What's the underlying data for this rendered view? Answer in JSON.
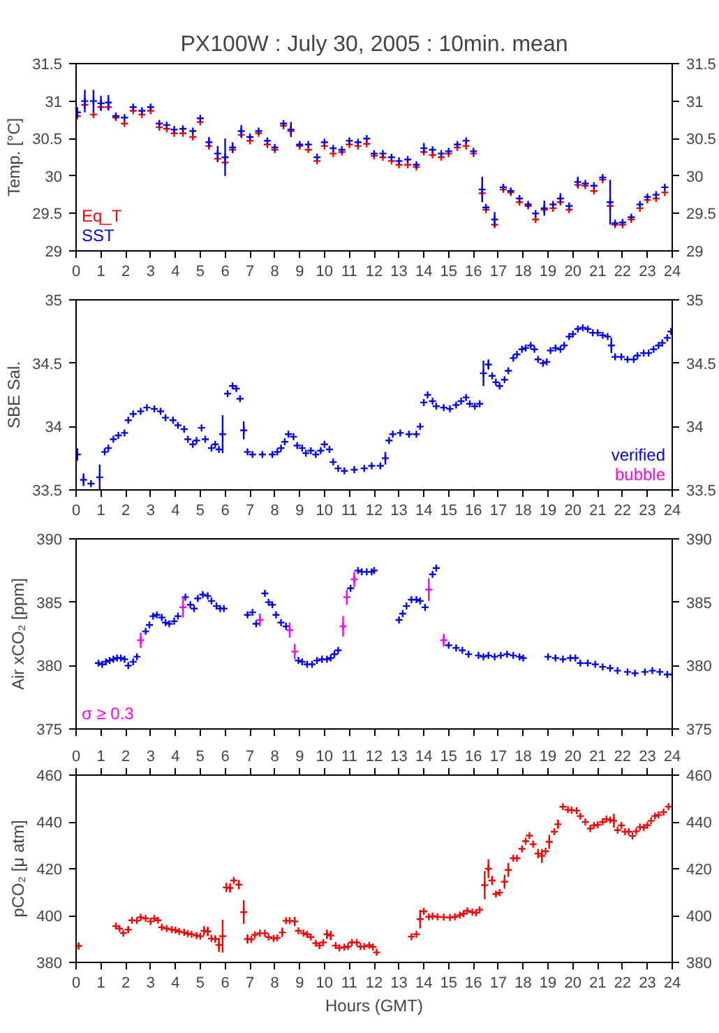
{
  "chart_data": [
    {
      "type": "scatter",
      "title": "PX100W : July 30, 2005 : 10min. mean",
      "ylabel": "Temp. [°C]",
      "marker": "cross",
      "legend": "bottom left",
      "grid": false,
      "xlim": [
        0,
        24
      ],
      "xticks": [
        0,
        1,
        2,
        3,
        4,
        5,
        6,
        7,
        8,
        9,
        10,
        11,
        12,
        13,
        14,
        15,
        16,
        17,
        18,
        19,
        20,
        21,
        22,
        23,
        24
      ],
      "ylim": [
        29,
        31.5
      ],
      "yticks": [
        29,
        29.5,
        30,
        30.5,
        31,
        31.5
      ],
      "y2lim": [
        29,
        31.5
      ],
      "y2ticks": [
        29,
        29.5,
        30,
        30.5,
        31,
        31.5
      ],
      "x": [
        0.05,
        0.35,
        0.7,
        1.0,
        1.3,
        1.6,
        1.95,
        2.3,
        2.65,
        3.0,
        3.35,
        3.65,
        3.95,
        4.3,
        4.7,
        5.0,
        5.35,
        5.7,
        6.0,
        6.3,
        6.65,
        7.0,
        7.35,
        7.7,
        8.0,
        8.35,
        8.65,
        9.0,
        9.35,
        9.7,
        10.0,
        10.35,
        10.7,
        11.0,
        11.35,
        11.7,
        12.0,
        12.35,
        12.7,
        13.0,
        13.35,
        13.7,
        14.0,
        14.35,
        14.7,
        15.0,
        15.35,
        15.7,
        16.0,
        16.35,
        16.5,
        16.85,
        17.2,
        17.5,
        17.85,
        18.2,
        18.5,
        18.85,
        19.2,
        19.5,
        19.85,
        20.2,
        20.5,
        20.85,
        21.2,
        21.5,
        21.7,
        22.0,
        22.35,
        22.7,
        23.0,
        23.35,
        23.7
      ],
      "series": [
        {
          "name": "Eq_T",
          "color": "#ff0000",
          "values": [
            30.8,
            30.95,
            30.82,
            30.92,
            30.92,
            30.78,
            30.7,
            30.87,
            30.82,
            30.87,
            30.65,
            30.63,
            30.57,
            30.57,
            30.52,
            30.72,
            30.4,
            30.23,
            30.18,
            30.35,
            30.55,
            30.47,
            30.57,
            30.42,
            30.35,
            30.67,
            30.6,
            30.4,
            30.35,
            30.2,
            30.4,
            30.3,
            30.32,
            30.42,
            30.4,
            30.43,
            30.27,
            30.25,
            30.2,
            30.15,
            30.15,
            30.12,
            30.32,
            30.28,
            30.25,
            30.3,
            30.38,
            30.4,
            30.3,
            29.77,
            29.55,
            29.35,
            29.82,
            29.78,
            29.65,
            29.6,
            29.42,
            29.55,
            29.57,
            29.65,
            29.55,
            29.88,
            29.87,
            29.8,
            29.95,
            29.6,
            29.35,
            29.35,
            29.42,
            29.57,
            29.68,
            29.7,
            29.78
          ]
        },
        {
          "name": "SST",
          "color": "#0000ff",
          "values": [
            30.85,
            31.0,
            31.0,
            30.97,
            30.98,
            30.8,
            30.78,
            30.92,
            30.87,
            30.92,
            30.7,
            30.68,
            30.62,
            30.63,
            30.6,
            30.77,
            30.45,
            30.3,
            30.25,
            30.38,
            30.6,
            30.52,
            30.6,
            30.47,
            30.38,
            30.7,
            30.62,
            30.42,
            30.42,
            30.25,
            30.45,
            30.37,
            30.35,
            30.47,
            30.45,
            30.5,
            30.3,
            30.3,
            30.25,
            30.2,
            30.22,
            30.15,
            30.37,
            30.35,
            30.3,
            30.33,
            30.42,
            30.47,
            30.33,
            29.82,
            29.58,
            29.42,
            29.85,
            29.8,
            29.7,
            29.62,
            29.5,
            29.57,
            29.62,
            29.7,
            29.6,
            29.92,
            29.9,
            29.87,
            29.98,
            29.65,
            29.37,
            29.38,
            29.45,
            29.62,
            29.72,
            29.75,
            29.85
          ],
          "errors": [
            0.07,
            0.15,
            0.15,
            0.1,
            0.1,
            null,
            null,
            null,
            null,
            null,
            null,
            null,
            null,
            null,
            null,
            null,
            0.07,
            0.1,
            0.25,
            0.07,
            0.08,
            null,
            null,
            null,
            null,
            null,
            0.1,
            null,
            null,
            null,
            null,
            null,
            null,
            null,
            null,
            null,
            null,
            null,
            null,
            null,
            null,
            null,
            0.07,
            null,
            null,
            null,
            null,
            null,
            null,
            0.17,
            null,
            0.1,
            null,
            null,
            null,
            null,
            null,
            0.1,
            null,
            0.07,
            null,
            0.07,
            null,
            null,
            null,
            0.3,
            null,
            null,
            null,
            null,
            null,
            null,
            null
          ]
        }
      ]
    },
    {
      "type": "scatter",
      "ylabel": "SBE Sal.",
      "marker": "cross",
      "legend": "bottom right",
      "grid": false,
      "xlim": [
        0,
        24
      ],
      "xticks": [
        0,
        1,
        2,
        3,
        4,
        5,
        6,
        7,
        8,
        9,
        10,
        11,
        12,
        13,
        14,
        15,
        16,
        17,
        18,
        19,
        20,
        21,
        22,
        23,
        24
      ],
      "ylim": [
        33.5,
        35
      ],
      "yticks": [
        33.5,
        34,
        34.5,
        35
      ],
      "y2lim": [
        33.5,
        35
      ],
      "y2ticks": [
        33.5,
        34,
        34.5,
        35
      ],
      "series": [
        {
          "name": "verified",
          "color": "#0000ff",
          "x": [
            0.05,
            0.3,
            0.6,
            0.95,
            1.15,
            1.3,
            1.5,
            1.7,
            1.95,
            2.1,
            2.3,
            2.6,
            2.85,
            3.15,
            3.4,
            3.6,
            3.9,
            4.1,
            4.35,
            4.5,
            4.7,
            4.85,
            5.05,
            5.2,
            5.45,
            5.6,
            5.75,
            5.9,
            6.1,
            6.3,
            6.45,
            6.6,
            6.75,
            6.9,
            7.1,
            7.5,
            7.9,
            8.1,
            8.25,
            8.4,
            8.55,
            8.75,
            8.9,
            9.1,
            9.25,
            9.45,
            9.65,
            9.85,
            10.0,
            10.2,
            10.35,
            10.55,
            10.8,
            11.2,
            11.6,
            11.9,
            12.25,
            12.45,
            12.6,
            12.75,
            13.05,
            13.4,
            13.7,
            13.85,
            14.0,
            14.15,
            14.35,
            14.5,
            14.8,
            15.05,
            15.3,
            15.5,
            15.7,
            15.85,
            16.05,
            16.25,
            16.4,
            16.6,
            16.75,
            16.9,
            17.05,
            17.25,
            17.4,
            17.6,
            17.75,
            17.95,
            18.1,
            18.3,
            18.45,
            18.6,
            18.8,
            18.95,
            19.1,
            19.3,
            19.5,
            19.65,
            19.85,
            20.0,
            20.2,
            20.4,
            20.6,
            20.8,
            21.0,
            21.2,
            21.4,
            21.55,
            21.7,
            21.95,
            22.2,
            22.45,
            22.6,
            22.85,
            23.05,
            23.25,
            23.45,
            23.6,
            23.8,
            23.95
          ],
          "values": [
            33.78,
            33.58,
            33.55,
            33.6,
            33.8,
            33.83,
            33.9,
            33.93,
            33.95,
            34.05,
            34.1,
            34.12,
            34.15,
            34.14,
            34.12,
            34.07,
            34.05,
            34.01,
            33.98,
            33.9,
            33.86,
            33.89,
            33.99,
            33.9,
            33.83,
            33.86,
            33.82,
            33.94,
            34.26,
            34.32,
            34.3,
            34.22,
            33.97,
            33.8,
            33.78,
            33.78,
            33.78,
            33.8,
            33.83,
            33.88,
            33.94,
            33.92,
            33.85,
            33.83,
            33.79,
            33.81,
            33.78,
            33.81,
            33.86,
            33.82,
            33.72,
            33.67,
            33.65,
            33.66,
            33.67,
            33.69,
            33.69,
            33.75,
            33.89,
            33.94,
            33.95,
            33.94,
            33.94,
            34.0,
            34.19,
            34.25,
            34.2,
            34.16,
            34.15,
            34.14,
            34.17,
            34.2,
            34.23,
            34.18,
            34.16,
            34.18,
            34.42,
            34.49,
            34.4,
            34.35,
            34.32,
            34.37,
            34.44,
            34.54,
            34.57,
            34.61,
            34.62,
            34.64,
            34.61,
            34.53,
            34.5,
            34.51,
            34.6,
            34.62,
            34.61,
            34.64,
            34.71,
            34.73,
            34.77,
            34.78,
            34.77,
            34.74,
            34.74,
            34.72,
            34.71,
            34.64,
            34.55,
            34.55,
            34.53,
            34.53,
            34.56,
            34.58,
            34.58,
            34.61,
            34.64,
            34.66,
            34.7,
            34.75
          ],
          "errors": [
            0.05,
            0.05,
            null,
            0.1,
            null,
            null,
            null,
            null,
            null,
            null,
            null,
            null,
            null,
            null,
            null,
            null,
            null,
            null,
            null,
            null,
            null,
            null,
            null,
            null,
            null,
            null,
            null,
            0.15,
            null,
            null,
            null,
            null,
            0.07,
            null,
            null,
            null,
            null,
            null,
            null,
            null,
            null,
            null,
            null,
            null,
            null,
            null,
            null,
            null,
            null,
            null,
            null,
            null,
            null,
            null,
            null,
            null,
            null,
            0.05,
            null,
            null,
            null,
            null,
            null,
            null,
            null,
            null,
            null,
            null,
            null,
            null,
            null,
            null,
            null,
            null,
            null,
            null,
            0.1,
            0.04,
            null,
            null,
            null,
            null,
            null,
            null,
            null,
            null,
            null,
            null,
            null,
            null,
            null,
            null,
            null,
            null,
            null,
            null,
            null,
            null,
            null,
            null,
            null,
            null,
            null,
            null,
            null,
            0.06,
            null,
            null,
            null,
            null,
            null,
            null,
            null,
            null,
            null,
            null,
            null,
            null
          ]
        },
        {
          "name": "bubble",
          "color": "#ff00ff"
        }
      ]
    },
    {
      "type": "scatter",
      "ylabel": "Air xCO₂ [ppm]",
      "marker": "cross",
      "legend": "bottom left",
      "grid": false,
      "tick_labels": "y",
      "xlim": [
        0,
        24
      ],
      "xticks": [
        0,
        1,
        2,
        3,
        4,
        5,
        6,
        7,
        8,
        9,
        10,
        11,
        12,
        13,
        14,
        15,
        16,
        17,
        18,
        19,
        20,
        21,
        22,
        23,
        24
      ],
      "ylim": [
        375,
        390
      ],
      "yticks": [
        375,
        380,
        385,
        390
      ],
      "y2lim": [
        375,
        390
      ],
      "y2ticks": [
        375,
        380,
        385,
        390
      ],
      "series": [
        {
          "color": "#0000ff",
          "x": [
            0.9,
            1.05,
            1.2,
            1.35,
            1.5,
            1.65,
            1.8,
            1.95,
            2.1,
            2.3,
            2.45,
            2.8,
            2.95,
            3.1,
            3.25,
            3.45,
            3.6,
            3.75,
            3.95,
            4.1,
            4.4,
            4.6,
            4.75,
            4.9,
            5.1,
            5.3,
            5.45,
            5.65,
            5.8,
            5.95,
            6.9,
            7.1,
            7.25,
            7.6,
            7.75,
            7.9,
            8.05,
            8.25,
            8.45,
            8.95,
            9.1,
            9.3,
            9.5,
            9.7,
            9.9,
            10.1,
            10.25,
            10.4,
            10.55,
            11.05,
            11.35,
            11.5,
            11.7,
            11.9,
            12.0,
            13.0,
            13.15,
            13.3,
            13.5,
            13.7,
            13.85,
            14.05,
            14.35,
            14.5,
            15.0,
            15.3,
            15.55,
            15.8,
            16.2,
            16.4,
            16.6,
            16.85,
            17.1,
            17.35,
            17.6,
            17.85,
            18.0,
            19.0,
            19.3,
            19.6,
            19.9,
            20.1,
            20.3,
            20.6,
            20.9,
            21.2,
            21.5,
            21.8,
            22.2,
            22.5,
            22.9,
            23.2,
            23.5,
            23.8,
            24.0
          ],
          "values": [
            380.2,
            380.1,
            380.3,
            380.4,
            380.5,
            380.6,
            380.6,
            380.5,
            380.0,
            380.3,
            380.7,
            382.7,
            383.2,
            383.9,
            384.0,
            383.8,
            383.4,
            383.3,
            383.5,
            383.9,
            385.4,
            384.8,
            384.5,
            385.3,
            385.6,
            385.5,
            385.1,
            384.7,
            384.5,
            384.5,
            384.0,
            384.2,
            383.3,
            385.7,
            385.0,
            384.8,
            384.0,
            383.4,
            383.1,
            380.4,
            380.3,
            380.1,
            380.1,
            380.4,
            380.5,
            380.5,
            380.6,
            380.9,
            381.2,
            386.1,
            387.5,
            387.4,
            387.4,
            387.4,
            387.5,
            383.6,
            384.1,
            384.7,
            385.2,
            385.2,
            385.1,
            384.6,
            387.2,
            387.7,
            381.6,
            381.4,
            381.2,
            380.9,
            380.8,
            380.7,
            380.8,
            380.7,
            380.8,
            380.9,
            380.8,
            380.7,
            380.6,
            380.7,
            380.6,
            380.5,
            380.6,
            380.6,
            380.2,
            380.2,
            380.1,
            379.9,
            379.8,
            379.6,
            379.5,
            379.4,
            379.5,
            379.6,
            379.5,
            379.3,
            379.3
          ]
        },
        {
          "name": "σ ≥ 0.3",
          "color": "#ff00ff",
          "x": [
            2.6,
            4.3,
            7.4,
            8.6,
            8.8,
            10.75,
            10.9,
            11.2,
            14.2,
            14.8
          ],
          "values": [
            382.0,
            384.6,
            383.6,
            382.8,
            381.1,
            383.1,
            385.4,
            386.8,
            386.0,
            382.0
          ],
          "errors": [
            0.6,
            0.8,
            0.5,
            0.6,
            0.6,
            0.8,
            0.6,
            0.6,
            0.9,
            0.5
          ]
        }
      ]
    },
    {
      "type": "scatter",
      "ylabel": "pCO₂ [μ atm]",
      "xlabel": "Hours (GMT)",
      "marker": "cross",
      "grid": false,
      "xlim": [
        0,
        24
      ],
      "xticks": [
        0,
        1,
        2,
        3,
        4,
        5,
        6,
        7,
        8,
        9,
        10,
        11,
        12,
        13,
        14,
        15,
        16,
        17,
        18,
        19,
        20,
        21,
        22,
        23,
        24
      ],
      "x2lim": [
        0,
        24
      ],
      "x2ticks": [
        0,
        1,
        2,
        3,
        4,
        5,
        6,
        7,
        8,
        9,
        10,
        11,
        12,
        13,
        14,
        15,
        16,
        17,
        18,
        19,
        20,
        21,
        22,
        23,
        24
      ],
      "ylim": [
        380,
        460
      ],
      "yticks": [
        380,
        400,
        420,
        440,
        460
      ],
      "y2lim": [
        380,
        460
      ],
      "y2ticks": [
        380,
        400,
        420,
        440,
        460
      ],
      "series": [
        {
          "color": "#ff0000",
          "x": [
            0.1,
            1.6,
            1.75,
            1.9,
            2.1,
            2.25,
            2.45,
            2.6,
            2.8,
            3.0,
            3.15,
            3.3,
            3.45,
            3.65,
            3.85,
            4.0,
            4.15,
            4.35,
            4.5,
            4.65,
            4.85,
            5.0,
            5.15,
            5.3,
            5.45,
            5.6,
            5.75,
            5.9,
            6.05,
            6.2,
            6.35,
            6.55,
            6.75,
            6.9,
            7.05,
            7.2,
            7.4,
            7.6,
            7.75,
            7.95,
            8.1,
            8.3,
            8.45,
            8.6,
            8.8,
            8.95,
            9.15,
            9.3,
            9.45,
            9.65,
            9.8,
            9.95,
            10.1,
            10.25,
            10.45,
            10.6,
            10.8,
            10.95,
            11.1,
            11.3,
            11.45,
            11.6,
            11.8,
            11.95,
            12.1,
            13.5,
            13.7,
            13.85,
            14.0,
            14.2,
            14.35,
            14.55,
            14.8,
            15.05,
            15.25,
            15.45,
            15.6,
            15.75,
            15.95,
            16.1,
            16.25,
            16.45,
            16.6,
            16.75,
            16.9,
            17.05,
            17.25,
            17.4,
            17.6,
            17.75,
            17.95,
            18.1,
            18.25,
            18.4,
            18.6,
            18.75,
            18.9,
            19.05,
            19.25,
            19.4,
            19.6,
            19.8,
            19.95,
            20.15,
            20.3,
            20.5,
            20.7,
            20.85,
            21.0,
            21.2,
            21.35,
            21.5,
            21.65,
            21.8,
            21.95,
            22.1,
            22.25,
            22.4,
            22.55,
            22.7,
            22.85,
            23.0,
            23.15,
            23.3,
            23.45,
            23.65,
            23.85
          ],
          "values": [
            387,
            395.5,
            394.5,
            392.5,
            394,
            398,
            397.8,
            399.3,
            398.8,
            397.5,
            398.8,
            398,
            395,
            394.5,
            394,
            393.8,
            393.2,
            392.8,
            392.3,
            392,
            391.5,
            391.2,
            393.5,
            393.2,
            390.2,
            390,
            387.5,
            391.2,
            412,
            411.8,
            415,
            413.2,
            401.5,
            390,
            389.8,
            391.8,
            392.5,
            392.5,
            390.8,
            390.2,
            390.5,
            392.8,
            397.8,
            397.8,
            397.5,
            393.5,
            392.5,
            392,
            390.8,
            388.2,
            387.2,
            388.5,
            392,
            391.5,
            387.2,
            386.2,
            386.5,
            386.8,
            388.5,
            388.5,
            386.8,
            386.8,
            387.3,
            386.6,
            384.3,
            391,
            392,
            398.5,
            401.8,
            399.5,
            399.8,
            399.5,
            399.3,
            399.2,
            399.5,
            400.2,
            400.8,
            402,
            401.5,
            401.2,
            402.5,
            413,
            420,
            415,
            409.2,
            409.8,
            414.5,
            419.5,
            424.5,
            424.5,
            428.5,
            431.8,
            434.2,
            430.5,
            426.5,
            425.5,
            427.5,
            431.5,
            435.8,
            439,
            446.5,
            445.2,
            445,
            444.8,
            442.5,
            440,
            437.2,
            438.5,
            438.8,
            440,
            441.2,
            440.8,
            440.5,
            436.5,
            438.5,
            435.8,
            435.8,
            434,
            436,
            437.8,
            437.6,
            438.6,
            440.5,
            442.5,
            443,
            444.2,
            446.5
          ],
          "errors": [
            1.5,
            null,
            null,
            null,
            1.5,
            null,
            null,
            null,
            null,
            null,
            null,
            null,
            null,
            null,
            null,
            null,
            null,
            null,
            null,
            null,
            null,
            null,
            2,
            2,
            null,
            1.5,
            3,
            7,
            2,
            2,
            null,
            2,
            5,
            2,
            null,
            null,
            null,
            null,
            null,
            null,
            null,
            2,
            null,
            null,
            2,
            null,
            null,
            null,
            null,
            null,
            null,
            null,
            2,
            2,
            null,
            null,
            null,
            null,
            null,
            null,
            null,
            null,
            null,
            null,
            null,
            null,
            null,
            4,
            null,
            null,
            null,
            null,
            null,
            null,
            null,
            null,
            null,
            null,
            null,
            null,
            null,
            6,
            4,
            2,
            null,
            null,
            3,
            3,
            null,
            null,
            null,
            null,
            null,
            null,
            2,
            3,
            null,
            3,
            null,
            2,
            null,
            null,
            null,
            null,
            null,
            null,
            null,
            null,
            null,
            null,
            null,
            null,
            3,
            null,
            null,
            null,
            null,
            null,
            null,
            null,
            null,
            null,
            null,
            null,
            null,
            null,
            null
          ]
        }
      ]
    }
  ]
}
